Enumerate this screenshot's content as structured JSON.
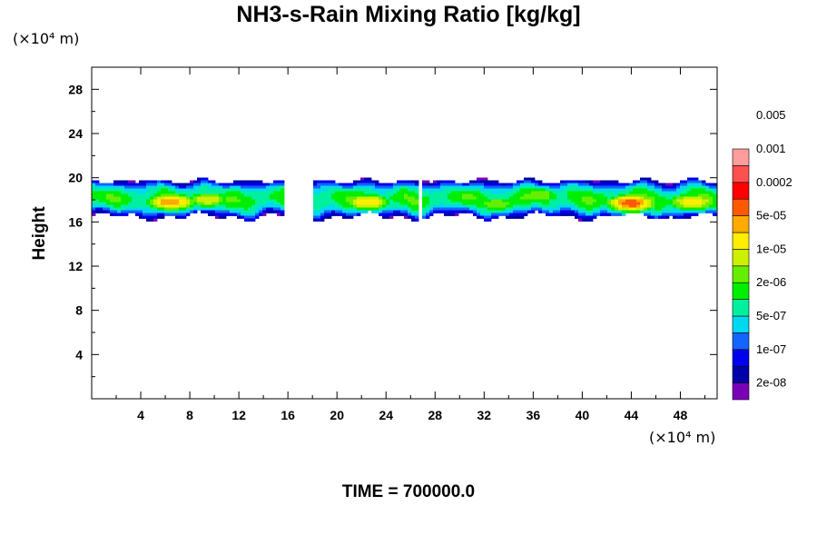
{
  "chart_data": {
    "type": "heatmap",
    "title": "NH3-s-Rain Mixing Ratio [kg/kg]",
    "xlabel": "",
    "ylabel": "Height",
    "x_unit": "(×10⁴ m)",
    "y_unit": "(×10⁴ m)",
    "xlim": [
      0,
      51
    ],
    "ylim": [
      0,
      30
    ],
    "x_ticks": [
      4,
      8,
      12,
      16,
      20,
      24,
      28,
      32,
      36,
      40,
      44,
      48
    ],
    "y_ticks": [
      4,
      8,
      12,
      16,
      20,
      24,
      28
    ],
    "colorbar": {
      "levels": [
        "2e-08",
        "1e-07",
        "5e-07",
        "2e-06",
        "1e-05",
        "5e-05",
        "0.0002",
        "0.001",
        "0.005"
      ],
      "colors": [
        "#7a00b8",
        "#0000aa",
        "#0000ee",
        "#1464ff",
        "#00d8f0",
        "#00f0a0",
        "#00ee00",
        "#66ee00",
        "#ccf000",
        "#ffee00",
        "#ffaa00",
        "#ff5a00",
        "#ff0000",
        "#ff5050",
        "#ff9c9c"
      ]
    },
    "layer": {
      "bottom": 16.5,
      "top": 19.9,
      "x_start": 0,
      "x_end": 51
    },
    "cores": [
      {
        "x": 6.5,
        "y": 17.8,
        "level": 11
      },
      {
        "x": 9.5,
        "y": 18.0,
        "level": 9
      },
      {
        "x": 22.5,
        "y": 17.8,
        "level": 10
      },
      {
        "x": 33.0,
        "y": 17.6,
        "level": 8
      },
      {
        "x": 36.5,
        "y": 18.4,
        "level": 8
      },
      {
        "x": 44.0,
        "y": 17.7,
        "level": 12
      },
      {
        "x": 49.0,
        "y": 17.8,
        "level": 10
      }
    ],
    "time_label": "TIME = 700000.0"
  }
}
